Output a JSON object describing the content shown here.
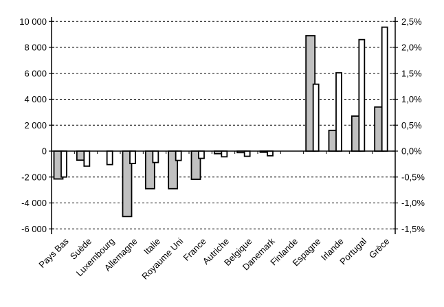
{
  "chart_data": {
    "type": "bar",
    "title": "",
    "legend": "none",
    "grid": "horizontal-dashed",
    "background_color": "#ffffff",
    "line_color": "#000000",
    "categories": [
      "Pays Bas",
      "Suède",
      "Luxembourg",
      "Allemagne",
      "Italie",
      "Royaume Uni",
      "France",
      "Autriche",
      "Belgique",
      "Danemark",
      "Finlande",
      "Espagne",
      "Irlande",
      "Portugal",
      "Grèce"
    ],
    "series": [
      {
        "name": "gray-bars-left-axis",
        "axis": "left",
        "fill": "#c0c0c0",
        "values": [
          -2150,
          -700,
          null,
          -5050,
          -2900,
          -2900,
          -2175,
          -200,
          -120,
          -90,
          null,
          8900,
          1600,
          2700,
          3400
        ]
      },
      {
        "name": "white-bars-right-axis",
        "axis": "right",
        "fill": "#ffffff",
        "values": [
          -0.5,
          -0.29,
          -0.26,
          -0.24,
          -0.22,
          -0.18,
          -0.14,
          -0.11,
          -0.1,
          -0.09,
          null,
          1.29,
          1.51,
          2.15,
          2.39
        ]
      }
    ],
    "left_axis": {
      "max": 10000,
      "min": -6000,
      "step": 2000,
      "ticks": [
        "10 000",
        "8 000",
        "6 000",
        "4 000",
        "2 000",
        "0",
        "-2 000",
        "-4 000",
        "-6 000"
      ]
    },
    "right_axis": {
      "max": 2.5,
      "min": -1.5,
      "step": 0.5,
      "ticks": [
        "2,5%",
        "2,0%",
        "1,5%",
        "1,0%",
        "0,5%",
        "0,0%",
        "-0,5%",
        "-1,0%",
        "-1,5%"
      ]
    }
  }
}
